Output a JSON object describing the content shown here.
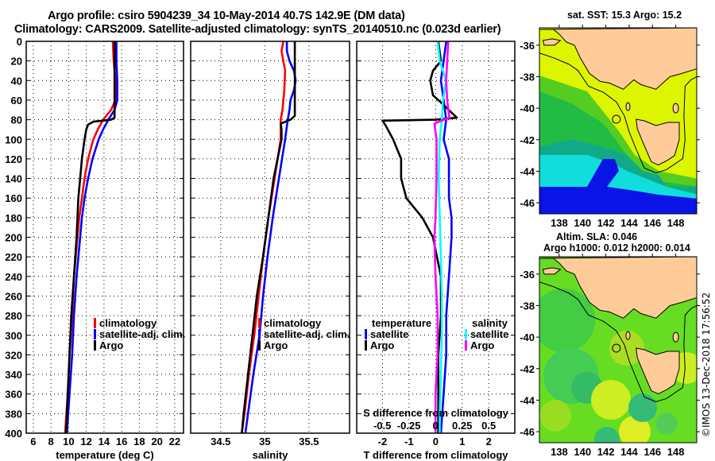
{
  "header": {
    "title_line1": "Argo profile: csiro 5904239_34 10-May-2014 40.7S 142.9E (DM data)",
    "title_line2": "Climatology: CARS2009. Satellite-adjusted climatology: synTS_20140510.nc (0.023d earlier)"
  },
  "colors": {
    "climatology": "#ff0000",
    "satellite": "#0000ff",
    "argo": "#000000",
    "salinity_satellite": "#00ffff",
    "salinity_argo": "#ff00ff",
    "land": "#ffcc99"
  },
  "chart_data": [
    {
      "type": "line",
      "id": "temperature",
      "xlabel": "temperature (deg C)",
      "ylabel": "",
      "xlim": [
        5.2,
        23.0
      ],
      "ylim": [
        400,
        0
      ],
      "xticks": [
        6,
        8,
        10,
        12,
        14,
        16,
        18,
        20,
        22
      ],
      "yticks": [
        0,
        20,
        40,
        60,
        80,
        100,
        120,
        140,
        160,
        180,
        200,
        220,
        240,
        260,
        280,
        300,
        320,
        340,
        360,
        380,
        400
      ],
      "grid": true,
      "legend": {
        "placement": "lower-right",
        "entries": [
          "climatology",
          "satellite-adj. clim.",
          "Argo"
        ]
      },
      "series": [
        {
          "name": "climatology",
          "color": "#ff0000",
          "depth": [
            0,
            20,
            40,
            60,
            70,
            80,
            90,
            100,
            120,
            140,
            160,
            180,
            200,
            240,
            280,
            320,
            360,
            400
          ],
          "values": [
            15.0,
            15.1,
            15.3,
            15.3,
            14.8,
            13.9,
            13.3,
            12.8,
            12.2,
            11.8,
            11.5,
            11.2,
            11.0,
            10.6,
            10.4,
            10.1,
            9.9,
            9.6
          ]
        },
        {
          "name": "satellite-adj. clim.",
          "color": "#0000ff",
          "depth": [
            0,
            20,
            40,
            60,
            70,
            80,
            90,
            100,
            120,
            140,
            160,
            180,
            200,
            240,
            280,
            320,
            360,
            400
          ],
          "values": [
            15.4,
            15.4,
            15.5,
            15.5,
            15.2,
            14.5,
            13.9,
            13.4,
            12.7,
            12.2,
            11.8,
            11.5,
            11.3,
            10.9,
            10.6,
            10.4,
            10.1,
            9.8
          ]
        },
        {
          "name": "Argo",
          "color": "#000000",
          "depth": [
            0,
            20,
            40,
            60,
            78,
            80,
            82,
            85,
            90,
            100,
            120,
            140,
            160,
            180,
            200,
            240,
            280,
            320,
            360,
            400
          ],
          "values": [
            15.2,
            15.2,
            15.2,
            15.2,
            15.2,
            14.8,
            12.8,
            12.2,
            12.0,
            11.8,
            11.5,
            11.3,
            11.1,
            11.0,
            10.9,
            10.6,
            10.3,
            10.1,
            9.9,
            9.7
          ]
        }
      ]
    },
    {
      "type": "line",
      "id": "salinity",
      "xlabel": "salinity",
      "xlim": [
        34.16,
        35.96
      ],
      "ylim": [
        400,
        0
      ],
      "xticks": [
        34.5,
        35,
        35.5
      ],
      "yticks": [
        0,
        20,
        40,
        60,
        80,
        100,
        120,
        140,
        160,
        180,
        200,
        220,
        240,
        260,
        280,
        300,
        320,
        340,
        360,
        380,
        400
      ],
      "grid": true,
      "legend": {
        "placement": "lower-right",
        "entries": [
          "climatology",
          "satellite-adj. clim.",
          "Argo"
        ]
      },
      "series": [
        {
          "name": "climatology",
          "color": "#ff0000",
          "depth": [
            0,
            10,
            30,
            50,
            70,
            80,
            85,
            100,
            140,
            180,
            220,
            260,
            300,
            340,
            380,
            400
          ],
          "values": [
            35.21,
            35.19,
            35.23,
            35.22,
            35.2,
            35.18,
            35.18,
            35.18,
            35.11,
            35.04,
            34.98,
            34.93,
            34.88,
            34.82,
            34.77,
            34.74
          ]
        },
        {
          "name": "satellite-adj. clim.",
          "color": "#0000ff",
          "depth": [
            0,
            10,
            20,
            30,
            40,
            50,
            60,
            70,
            80,
            100,
            140,
            180,
            220,
            260,
            300,
            340,
            380,
            400
          ],
          "values": [
            35.25,
            35.25,
            35.28,
            35.33,
            35.35,
            35.33,
            35.29,
            35.28,
            35.26,
            35.23,
            35.16,
            35.09,
            35.03,
            34.98,
            34.94,
            34.87,
            34.81,
            34.78
          ]
        },
        {
          "name": "Argo",
          "color": "#000000",
          "depth": [
            0,
            20,
            40,
            60,
            76,
            80,
            84,
            90,
            100,
            140,
            180,
            220,
            260,
            300,
            340,
            380,
            400
          ],
          "values": [
            35.34,
            35.34,
            35.34,
            35.34,
            35.34,
            35.29,
            35.18,
            35.19,
            35.19,
            35.1,
            35.04,
            34.98,
            34.91,
            34.86,
            34.81,
            34.76,
            34.74
          ]
        }
      ]
    },
    {
      "type": "line",
      "id": "difference",
      "xlabel": "T difference from climatology",
      "xlabel2": "S difference from climatology",
      "xlim": [
        -2.97,
        2.98
      ],
      "xlim2": [
        -0.74,
        0.745
      ],
      "ylim": [
        400,
        0
      ],
      "xticks": [
        -2,
        -1,
        0,
        1,
        2
      ],
      "xticks2": [
        -0.5,
        -0.25,
        0,
        0.25,
        0.5
      ],
      "yticks": [
        0,
        20,
        40,
        60,
        80,
        100,
        120,
        140,
        160,
        180,
        200,
        220,
        240,
        260,
        280,
        300,
        320,
        340,
        360,
        380,
        400
      ],
      "grid": true,
      "legend": {
        "placement": "lower",
        "groups": [
          {
            "title": "temperature",
            "entries": [
              "satellite",
              "Argo"
            ]
          },
          {
            "title": "salinity",
            "entries": [
              "satellite",
              "Argo"
            ]
          }
        ]
      },
      "series": [
        {
          "name": "temperature satellite",
          "color": "#0000ff",
          "axis": "T",
          "depth": [
            0,
            20,
            40,
            60,
            80,
            100,
            120,
            140,
            160,
            180,
            200,
            240,
            280,
            320,
            360,
            400
          ],
          "values": [
            0.4,
            0.3,
            0.2,
            0.3,
            0.4,
            0.3,
            0.5,
            0.5,
            0.5,
            0.6,
            0.6,
            0.5,
            0.4,
            0.4,
            0.3,
            0.2
          ]
        },
        {
          "name": "temperature Argo",
          "color": "#000000",
          "axis": "T",
          "depth": [
            0,
            20,
            30,
            40,
            55,
            65,
            78,
            80,
            81,
            85,
            100,
            120,
            140,
            160,
            180,
            200,
            240,
            280,
            320,
            360,
            400
          ],
          "values": [
            0.1,
            0.2,
            -0.1,
            -0.2,
            -0.1,
            0.3,
            0.8,
            0.0,
            -2.0,
            -1.9,
            -1.6,
            -1.3,
            -1.3,
            -1.1,
            -0.5,
            -0.1,
            0.2,
            0.2,
            0.1,
            0.1,
            0.1
          ]
        },
        {
          "name": "salinity satellite",
          "color": "#00ffff",
          "axis": "S",
          "depth": [
            0,
            20,
            40,
            60,
            80,
            100,
            140,
            180,
            220,
            260,
            300,
            340,
            380,
            400
          ],
          "values": [
            0.02,
            0.04,
            0.1,
            0.07,
            0.06,
            0.04,
            0.03,
            0.04,
            0.05,
            0.06,
            0.06,
            0.05,
            0.04,
            0.04
          ]
        },
        {
          "name": "salinity Argo",
          "color": "#ff00ff",
          "axis": "S",
          "depth": [
            0,
            20,
            40,
            60,
            78,
            80,
            84,
            100,
            140,
            180,
            200,
            240,
            280,
            320,
            360,
            400
          ],
          "values": [
            0.12,
            0.11,
            0.1,
            0.11,
            0.13,
            0.08,
            -0.01,
            0.01,
            0.01,
            0.0,
            -0.01,
            0.0,
            0.02,
            0.02,
            0.0,
            0.0
          ]
        }
      ]
    }
  ],
  "panels": {
    "temperature": {
      "xlabel": "temperature (deg C)"
    },
    "salinity": {
      "xlabel": "salinity"
    },
    "difference": {
      "xlabel": "T difference from climatology",
      "s_label": "S difference from climatology"
    }
  },
  "legend_profile": [
    "climatology",
    "satellite-adj. clim.",
    "Argo"
  ],
  "legend_diff": {
    "temperature_title": "temperature",
    "temperature_sat": "satellite",
    "temperature_argo": "Argo",
    "salinity_title": "salinity",
    "salinity_sat": "satellite",
    "salinity_argo": "Argo"
  },
  "maps": {
    "sst_title": "sat. SST: 15.3 Argo: 15.2",
    "sla_title1": "Altim. SLA: 0.046",
    "sla_title2": "Argo h1000: 0.012 h2000: 0.014",
    "lon_ticks": [
      "138",
      "140",
      "142",
      "144",
      "146",
      "148"
    ],
    "lat_ticks": [
      "-36",
      "-38",
      "-40",
      "-42",
      "-44",
      "-46"
    ],
    "argo_position": {
      "lon": 142.9,
      "lat": -40.7
    }
  },
  "footer": {
    "stamp": "©IMOS 13-Dec-2018 17:56:52"
  }
}
